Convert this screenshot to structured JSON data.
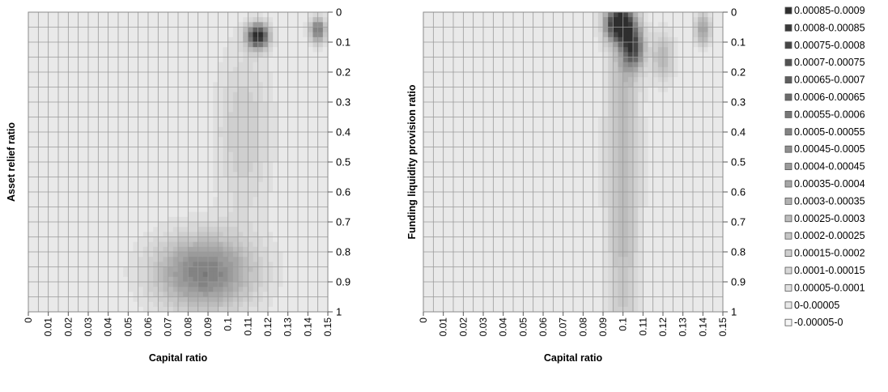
{
  "chart_data": [
    {
      "type": "heatmap",
      "subtype": "contour",
      "xlabel": "Capital ratio",
      "ylabel": "Asset relief ratio",
      "x_ticks": [
        "0",
        "0.01",
        "0.02",
        "0.03",
        "0.04",
        "0.05",
        "0.06",
        "0.07",
        "0.08",
        "0.09",
        "0.1",
        "0.11",
        "0.12",
        "0.13",
        "0.14",
        "0.15"
      ],
      "y_ticks": [
        "0",
        "0.1",
        "0.2",
        "0.3",
        "0.4",
        "0.5",
        "0.6",
        "0.7",
        "0.8",
        "0.9",
        "1"
      ],
      "xlim": [
        0,
        0.15
      ],
      "ylim": [
        0,
        1
      ],
      "y_axis_side": "right",
      "y_axis_inverted": true,
      "grid": true,
      "peaks": [
        {
          "x": 0.088,
          "y": 0.87,
          "level": 0.00055,
          "sx": 0.018,
          "sy": 0.09
        },
        {
          "x": 0.115,
          "y": 0.08,
          "level": 0.0009,
          "sx": 0.004,
          "sy": 0.03
        },
        {
          "x": 0.145,
          "y": 0.06,
          "level": 0.0006,
          "sx": 0.003,
          "sy": 0.03
        },
        {
          "x": 0.108,
          "y": 0.4,
          "level": 0.0002,
          "sx": 0.01,
          "sy": 0.2
        }
      ]
    },
    {
      "type": "heatmap",
      "subtype": "contour",
      "xlabel": "Capital ratio",
      "ylabel": "Funding liquidity provision ratio",
      "x_ticks": [
        "0",
        "0.01",
        "0.02",
        "0.03",
        "0.04",
        "0.05",
        "0.06",
        "0.07",
        "0.08",
        "0.09",
        "0.1",
        "0.11",
        "0.12",
        "0.13",
        "0.14",
        "0.15"
      ],
      "y_ticks": [
        "0",
        "0.1",
        "0.2",
        "0.3",
        "0.4",
        "0.5",
        "0.6",
        "0.7",
        "0.8",
        "0.9",
        "1"
      ],
      "xlim": [
        0,
        0.15
      ],
      "ylim": [
        0,
        1
      ],
      "y_axis_side": "right",
      "y_axis_inverted": true,
      "grid": true,
      "peaks": [
        {
          "x": 0.1,
          "y": 0.5,
          "level": 0.0003,
          "sx": 0.006,
          "sy": 0.55
        },
        {
          "x": 0.098,
          "y": 0.04,
          "level": 0.0009,
          "sx": 0.005,
          "sy": 0.04
        },
        {
          "x": 0.105,
          "y": 0.12,
          "level": 0.00065,
          "sx": 0.004,
          "sy": 0.05
        },
        {
          "x": 0.14,
          "y": 0.06,
          "level": 0.0004,
          "sx": 0.003,
          "sy": 0.04
        },
        {
          "x": 0.12,
          "y": 0.15,
          "level": 0.0003,
          "sx": 0.004,
          "sy": 0.06
        }
      ]
    }
  ],
  "legend": {
    "placement": "right",
    "items": [
      {
        "label": "0.00085-0.0009",
        "color": "#2e2e2e"
      },
      {
        "label": "0.0008-0.00085",
        "color": "#3a3a3a"
      },
      {
        "label": "0.00075-0.0008",
        "color": "#464646"
      },
      {
        "label": "0.0007-0.00075",
        "color": "#525252"
      },
      {
        "label": "0.00065-0.0007",
        "color": "#5e5e5e"
      },
      {
        "label": "0.0006-0.00065",
        "color": "#6b6b6b"
      },
      {
        "label": "0.00055-0.0006",
        "color": "#777777"
      },
      {
        "label": "0.0005-0.00055",
        "color": "#838383"
      },
      {
        "label": "0.00045-0.0005",
        "color": "#8f8f8f"
      },
      {
        "label": "0.0004-0.00045",
        "color": "#9b9b9b"
      },
      {
        "label": "0.00035-0.0004",
        "color": "#a6a6a6"
      },
      {
        "label": "0.0003-0.00035",
        "color": "#b1b1b1"
      },
      {
        "label": "0.00025-0.0003",
        "color": "#bcbcbc"
      },
      {
        "label": "0.0002-0.00025",
        "color": "#c6c6c6"
      },
      {
        "label": "0.00015-0.0002",
        "color": "#cfcfcf"
      },
      {
        "label": "0.0001-0.00015",
        "color": "#d8d8d8"
      },
      {
        "label": "0.00005-0.0001",
        "color": "#e0e0e0"
      },
      {
        "label": "0-0.00005",
        "color": "#e9e9e9"
      },
      {
        "label": "-0.00005-0",
        "color": "#f6f6f6"
      }
    ]
  }
}
